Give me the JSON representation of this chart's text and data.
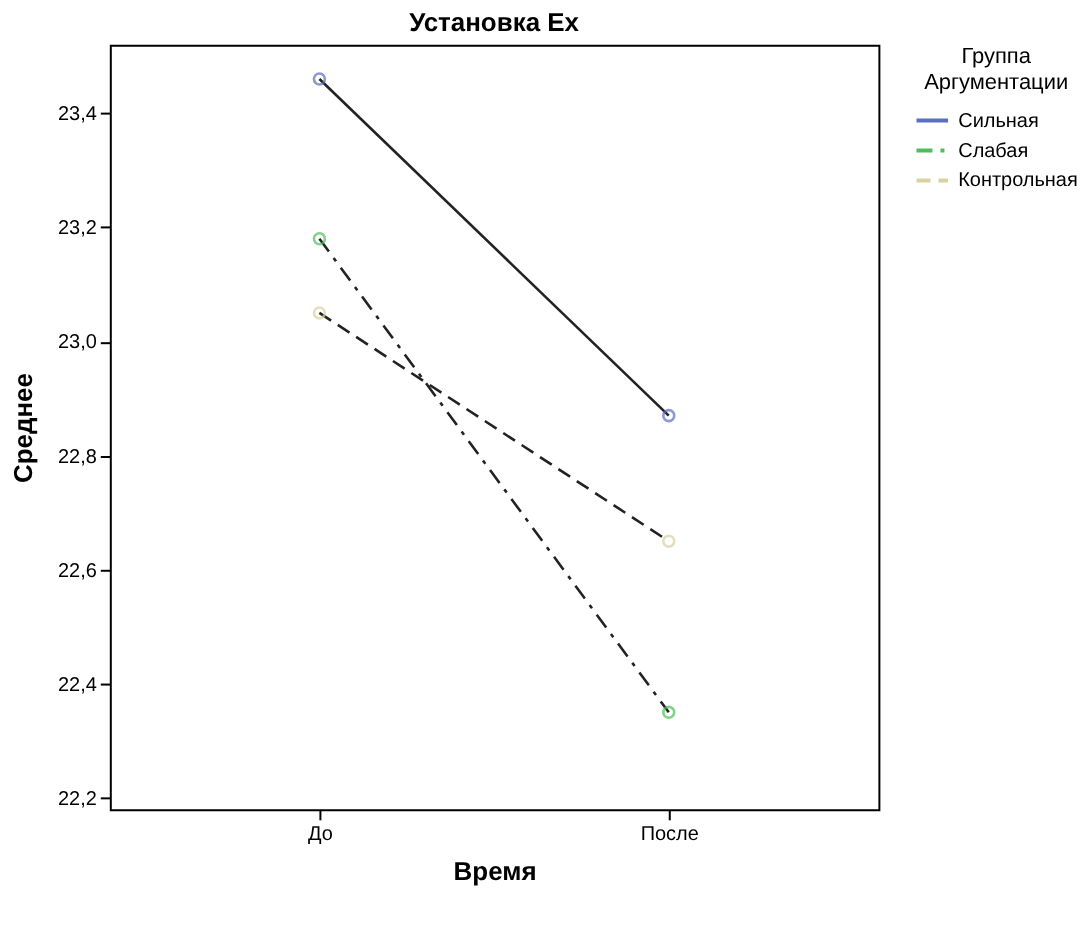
{
  "chart_data": {
    "type": "line",
    "title": "Установка Ex",
    "xlabel": "Время",
    "ylabel": "Среднее",
    "legend_title": "Группа Аргументации",
    "categories": [
      "До",
      "После"
    ],
    "series": [
      {
        "name": "Сильная",
        "color": "#5b6fc0",
        "line_style": "solid",
        "values": [
          23.46,
          22.87
        ]
      },
      {
        "name": "Слабая",
        "color": "#4cbf5a",
        "line_style": "dashdot",
        "values": [
          23.18,
          22.35
        ]
      },
      {
        "name": "Контрольная",
        "color": "#d8d2a0",
        "line_style": "dashed",
        "values": [
          23.05,
          22.65
        ]
      }
    ],
    "ylim": [
      22.18,
      23.52
    ],
    "yticks": [
      {
        "value": 22.2,
        "label": "22,2"
      },
      {
        "value": 22.4,
        "label": "22,4"
      },
      {
        "value": 22.6,
        "label": "22,6"
      },
      {
        "value": 22.8,
        "label": "22,8"
      },
      {
        "value": 23.0,
        "label": "23,0"
      },
      {
        "value": 23.2,
        "label": "23,2"
      },
      {
        "value": 23.4,
        "label": "23,4"
      }
    ],
    "grid": false,
    "legend": "top right",
    "marker": "circle"
  }
}
